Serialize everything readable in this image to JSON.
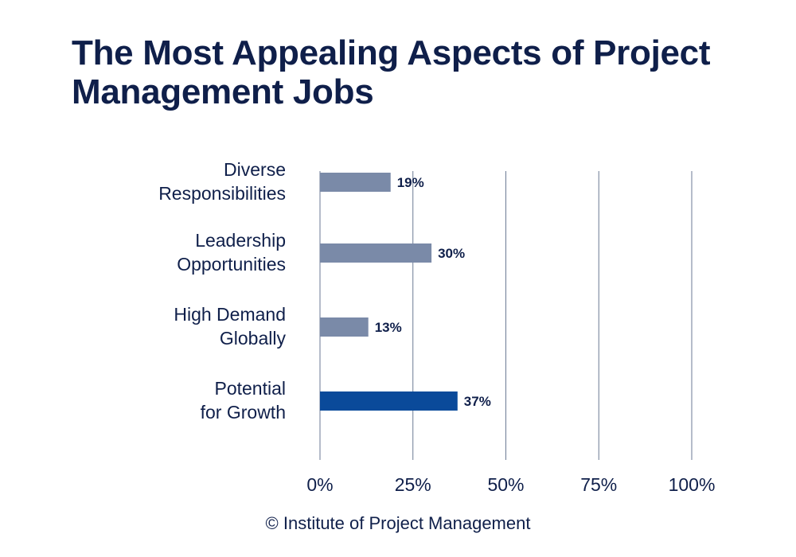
{
  "chart_data": {
    "type": "bar",
    "orientation": "horizontal",
    "title": "The Most Appealing Aspects of Project Management Jobs",
    "categories": [
      [
        "Diverse",
        "Responsibilities"
      ],
      [
        "Leadership",
        "Opportunities"
      ],
      [
        "High Demand",
        "Globally"
      ],
      [
        "Potential",
        "for Growth"
      ]
    ],
    "values": [
      19,
      30,
      13,
      37
    ],
    "value_labels": [
      "19%",
      "30%",
      "13%",
      "37%"
    ],
    "xlim": [
      0,
      100
    ],
    "xticks": [
      0,
      25,
      50,
      75,
      100
    ],
    "xtick_labels": [
      "0%",
      "25%",
      "50%",
      "75%",
      "100%"
    ],
    "grid": true,
    "colors": [
      "#7a8aa8",
      "#7a8aa8",
      "#7a8aa8",
      "#0a4a9a"
    ],
    "grid_color": "#6b7a94"
  },
  "source": "© Institute of Project Management"
}
